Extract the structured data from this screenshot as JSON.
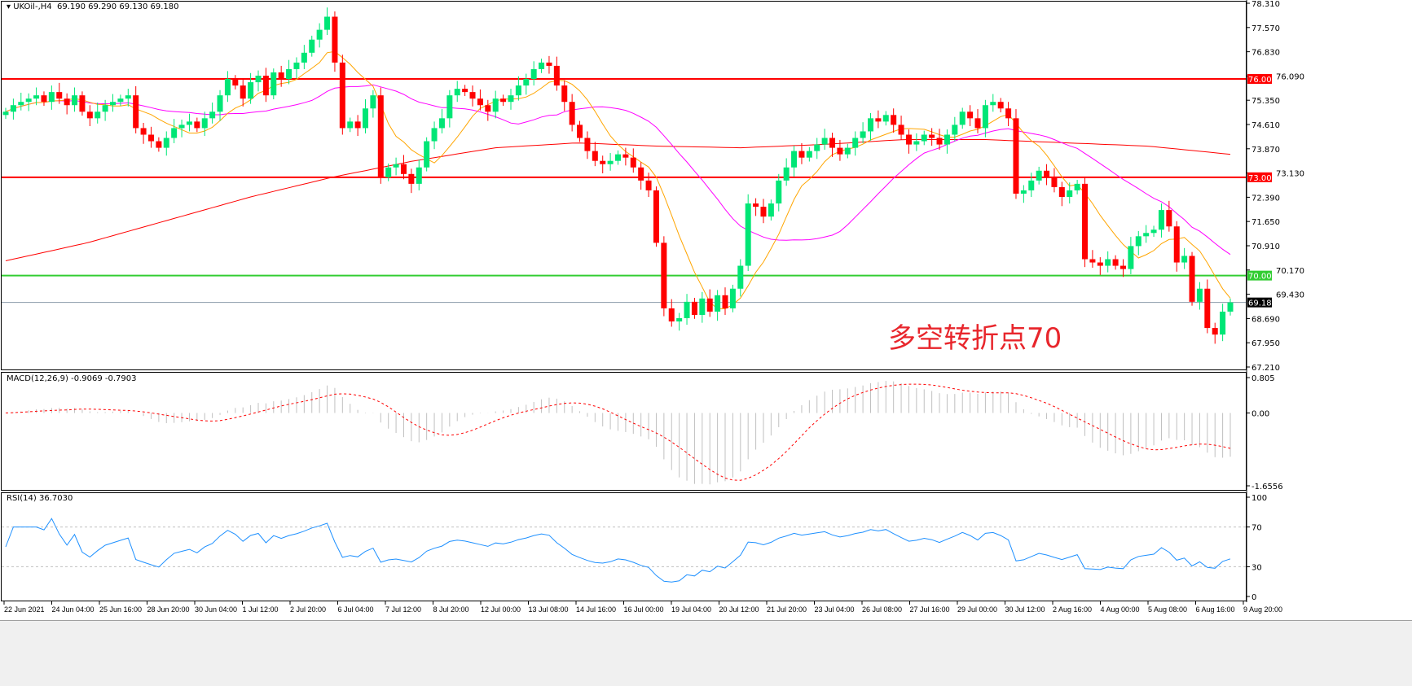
{
  "header": {
    "symbol": "UKOil-,H4",
    "ohlc": "69.190 69.290 69.130 69.180"
  },
  "annotation": "多空转折点70",
  "colors": {
    "bull": "#00e676",
    "bear": "#ff0000",
    "ma_fast": "#ffa500",
    "ma_mid": "#ff00ff",
    "ma_slow": "#ff0000",
    "level_red": "#ff0000",
    "level_green": "#32cd32",
    "rsi": "#1e90ff",
    "macd_hist": "#c0c0c0",
    "macd_signal": "#ff0000"
  },
  "chart_data": [
    {
      "type": "candlestick",
      "title": "UKOil-,H4",
      "ylim": [
        67.21,
        78.31
      ],
      "y_ticks": [
        "78.310",
        "77.570",
        "76.830",
        "76.090",
        "75.350",
        "74.610",
        "73.870",
        "73.130",
        "72.390",
        "71.650",
        "70.910",
        "70.170",
        "69.430",
        "68.690",
        "67.950",
        "67.210"
      ],
      "x_ticks": [
        "22 Jun 2021",
        "24 Jun 04:00",
        "25 Jun 16:00",
        "28 Jun 20:00",
        "30 Jun 04:00",
        "1 Jul 12:00",
        "2 Jul 20:00",
        "6 Jul 04:00",
        "7 Jul 12:00",
        "8 Jul 20:00",
        "12 Jul 00:00",
        "13 Jul 08:00",
        "14 Jul 16:00",
        "16 Jul 00:00",
        "19 Jul 04:00",
        "20 Jul 12:00",
        "21 Jul 20:00",
        "23 Jul 04:00",
        "26 Jul 08:00",
        "27 Jul 16:00",
        "29 Jul 00:00",
        "30 Jul 12:00",
        "2 Aug 16:00",
        "4 Aug 00:00",
        "5 Aug 08:00",
        "6 Aug 16:00",
        "9 Aug 20:00"
      ],
      "close": [
        75.0,
        75.2,
        75.3,
        75.4,
        75.5,
        75.3,
        75.6,
        75.4,
        75.2,
        75.5,
        75.0,
        74.8,
        75.0,
        75.2,
        75.3,
        75.4,
        75.5,
        74.5,
        74.3,
        74.1,
        73.9,
        74.2,
        74.5,
        74.6,
        74.7,
        74.5,
        74.8,
        75.0,
        75.5,
        76.0,
        75.8,
        75.4,
        75.9,
        76.1,
        75.5,
        76.2,
        76.0,
        76.3,
        76.5,
        76.8,
        77.2,
        77.5,
        77.9,
        76.5,
        74.5,
        74.7,
        74.5,
        75.1,
        75.5,
        73.0,
        73.3,
        73.4,
        73.1,
        72.8,
        73.3,
        74.1,
        74.5,
        74.8,
        75.5,
        75.7,
        75.6,
        75.4,
        75.2,
        75.0,
        75.4,
        75.3,
        75.5,
        75.8,
        76.0,
        76.3,
        76.5,
        76.4,
        75.8,
        75.3,
        74.6,
        74.2,
        73.8,
        73.5,
        73.4,
        73.5,
        73.7,
        73.6,
        73.3,
        72.9,
        72.6,
        71.0,
        69.0,
        68.6,
        68.7,
        69.2,
        68.8,
        69.3,
        68.9,
        69.4,
        69.0,
        69.6,
        70.3,
        72.2,
        72.1,
        71.8,
        72.2,
        72.9,
        73.3,
        73.8,
        73.6,
        73.8,
        74.0,
        74.2,
        73.9,
        73.7,
        73.9,
        74.2,
        74.4,
        74.8,
        74.7,
        74.9,
        74.6,
        74.3,
        74.0,
        74.1,
        74.3,
        74.2,
        74.0,
        74.3,
        74.6,
        75.0,
        74.8,
        74.5,
        75.2,
        75.3,
        75.1,
        74.8,
        72.5,
        72.6,
        72.9,
        73.2,
        73.0,
        72.7,
        72.4,
        72.6,
        72.8,
        70.5,
        70.4,
        70.3,
        70.5,
        70.3,
        70.2,
        70.9,
        71.2,
        71.3,
        71.4,
        72.0,
        71.5,
        70.4,
        70.6,
        69.2,
        69.6,
        68.4,
        68.2,
        68.9,
        69.18
      ],
      "ma_slow_knots": [
        70.45,
        71.0,
        71.7,
        72.4,
        73.0,
        73.5,
        73.9,
        74.05,
        73.95,
        73.9,
        74.0,
        74.15,
        74.15,
        74.05,
        73.95,
        73.7
      ],
      "levels": [
        {
          "value": 76.0,
          "label": "76.000",
          "color": "#ff0000"
        },
        {
          "value": 73.0,
          "label": "73.000",
          "color": "#ff0000"
        },
        {
          "value": 70.0,
          "label": "70.000",
          "color": "#32cd32"
        }
      ],
      "current_price": {
        "value": 69.18,
        "label": "69.180"
      }
    },
    {
      "type": "bar",
      "title": "MACD(12,26,9) -0.9069 -0.7903",
      "ylim": [
        -1.6556,
        0.805
      ],
      "y_ticks": [
        "0.805",
        "0.00",
        "-1.6556"
      ]
    },
    {
      "type": "line",
      "title": "RSI(14) 36.7030",
      "ylim": [
        0,
        100
      ],
      "y_ticks": [
        "100",
        "70",
        "30",
        "0"
      ],
      "levels": [
        70,
        30
      ]
    }
  ]
}
